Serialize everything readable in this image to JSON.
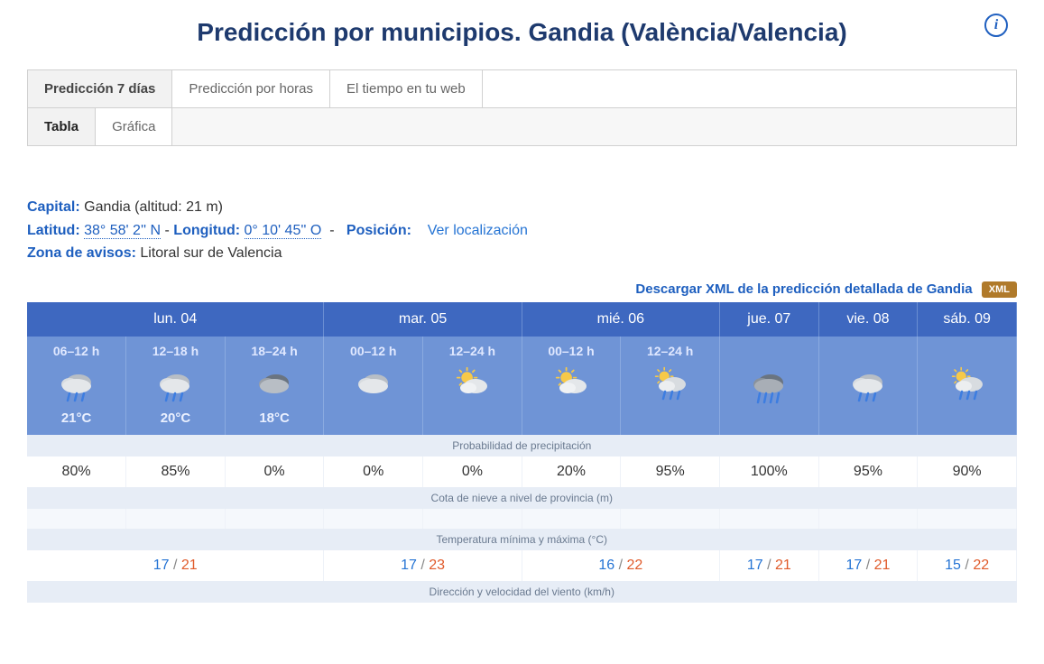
{
  "header": {
    "title": "Predicción por municipios. Gandia (València/Valencia)"
  },
  "tabs_top": [
    {
      "label": "Predicción 7 días",
      "active": true
    },
    {
      "label": "Predicción por horas",
      "active": false
    },
    {
      "label": "El tiempo en tu web",
      "active": false
    }
  ],
  "tabs_sub": [
    {
      "label": "Tabla",
      "active": true
    },
    {
      "label": "Gráfica",
      "active": false
    }
  ],
  "meta": {
    "capital_label": "Capital:",
    "capital_value": "Gandia (altitud: 21 m)",
    "lat_label": "Latitud:",
    "lat_value": "38° 58' 2'' N",
    "lon_label": "Longitud:",
    "lon_value": "0° 10' 45'' O",
    "pos_label": "Posición:",
    "pos_link": "Ver localización",
    "zone_label": "Zona de avisos:",
    "zone_value": "Litoral sur de Valencia"
  },
  "download": {
    "text": "Descargar XML de la predicción detallada de Gandia",
    "badge": "XML"
  },
  "colors": {
    "header_bg": "#3e68c0",
    "period_bg": "#6f94d6",
    "section_bg": "#e7edf6",
    "accent_blue": "#1e5fbf",
    "temp_min": "#2574d4",
    "temp_max": "#e05a2a",
    "badge_bg": "#b07a2a"
  },
  "forecast": {
    "days": [
      {
        "label": "lun. 04",
        "span": 3
      },
      {
        "label": "mar. 05",
        "span": 2
      },
      {
        "label": "mié. 06",
        "span": 2
      },
      {
        "label": "jue. 07",
        "span": 1
      },
      {
        "label": "vie. 08",
        "span": 1
      },
      {
        "label": "sáb. 09",
        "span": 1
      }
    ],
    "periods": [
      {
        "hours": "06–12 h",
        "icon": "rain",
        "temp": "21°C"
      },
      {
        "hours": "12–18 h",
        "icon": "rain",
        "temp": "20°C"
      },
      {
        "hours": "18–24 h",
        "icon": "dark-cloud",
        "temp": "18°C"
      },
      {
        "hours": "00–12 h",
        "icon": "cloud",
        "temp": ""
      },
      {
        "hours": "12–24 h",
        "icon": "sun-cloud",
        "temp": ""
      },
      {
        "hours": "00–12 h",
        "icon": "sun-cloud",
        "temp": ""
      },
      {
        "hours": "12–24 h",
        "icon": "sun-rain",
        "temp": ""
      },
      {
        "hours": "",
        "icon": "heavy-rain",
        "temp": ""
      },
      {
        "hours": "",
        "icon": "rain",
        "temp": ""
      },
      {
        "hours": "",
        "icon": "sun-rain",
        "temp": ""
      }
    ],
    "sections": {
      "precip_label": "Probabilidad de precipitación",
      "precip": [
        "80%",
        "85%",
        "0%",
        "0%",
        "0%",
        "20%",
        "95%",
        "100%",
        "95%",
        "90%"
      ],
      "snow_label": "Cota de nieve a nivel de provincia (m)",
      "temp_label": "Temperatura mínima y máxima (°C)",
      "temps": [
        {
          "span": 3,
          "min": "17",
          "max": "21"
        },
        {
          "span": 2,
          "min": "17",
          "max": "23"
        },
        {
          "span": 2,
          "min": "16",
          "max": "22"
        },
        {
          "span": 1,
          "min": "17",
          "max": "21"
        },
        {
          "span": 1,
          "min": "17",
          "max": "21"
        },
        {
          "span": 1,
          "min": "15",
          "max": "22"
        }
      ],
      "wind_label": "Dirección y velocidad del viento (km/h)"
    }
  }
}
